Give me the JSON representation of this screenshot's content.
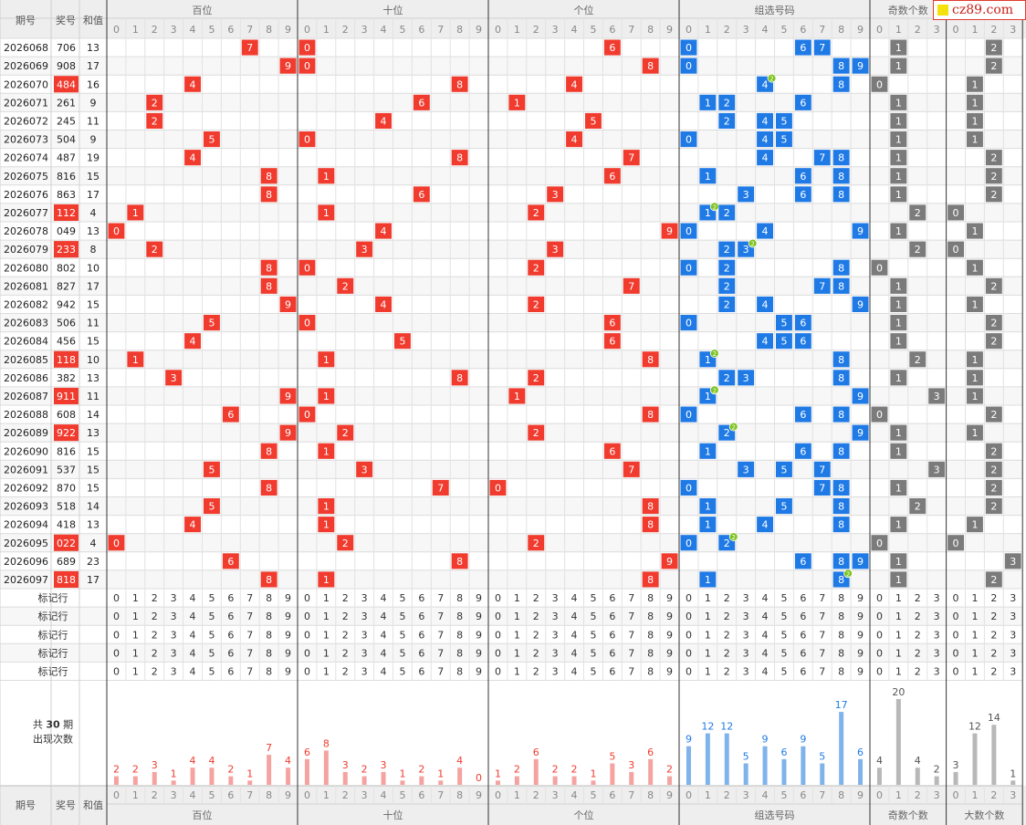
{
  "logo": {
    "text": "cz89.com"
  },
  "columns": {
    "period": "期号",
    "number": "奖号",
    "sum": "和值",
    "groups": [
      {
        "label": "百位",
        "digits": [
          "0",
          "1",
          "2",
          "3",
          "4",
          "5",
          "6",
          "7",
          "8",
          "9"
        ]
      },
      {
        "label": "十位",
        "digits": [
          "0",
          "1",
          "2",
          "3",
          "4",
          "5",
          "6",
          "7",
          "8",
          "9"
        ]
      },
      {
        "label": "个位",
        "digits": [
          "0",
          "1",
          "2",
          "3",
          "4",
          "5",
          "6",
          "7",
          "8",
          "9"
        ]
      },
      {
        "label": "组选号码",
        "digits": [
          "0",
          "1",
          "2",
          "3",
          "4",
          "5",
          "6",
          "7",
          "8",
          "9"
        ]
      },
      {
        "label": "奇数个数",
        "digits": [
          "0",
          "1",
          "2",
          "3"
        ]
      },
      {
        "label": "大数个数",
        "digits": [
          "0",
          "1",
          "2",
          "3"
        ]
      }
    ]
  },
  "rows": [
    {
      "period": "2026068",
      "number": "706",
      "sum": "13",
      "highlight": false
    },
    {
      "period": "2026069",
      "number": "908",
      "sum": "17",
      "highlight": false
    },
    {
      "period": "2026070",
      "number": "484",
      "sum": "16",
      "highlight": true
    },
    {
      "period": "2026071",
      "number": "261",
      "sum": "9",
      "highlight": false
    },
    {
      "period": "2026072",
      "number": "245",
      "sum": "11",
      "highlight": false
    },
    {
      "period": "2026073",
      "number": "504",
      "sum": "9",
      "highlight": false
    },
    {
      "period": "2026074",
      "number": "487",
      "sum": "19",
      "highlight": false
    },
    {
      "period": "2026075",
      "number": "816",
      "sum": "15",
      "highlight": false
    },
    {
      "period": "2026076",
      "number": "863",
      "sum": "17",
      "highlight": false
    },
    {
      "period": "2026077",
      "number": "112",
      "sum": "4",
      "highlight": true
    },
    {
      "period": "2026078",
      "number": "049",
      "sum": "13",
      "highlight": false
    },
    {
      "period": "2026079",
      "number": "233",
      "sum": "8",
      "highlight": true
    },
    {
      "period": "2026080",
      "number": "802",
      "sum": "10",
      "highlight": false
    },
    {
      "period": "2026081",
      "number": "827",
      "sum": "17",
      "highlight": false
    },
    {
      "period": "2026082",
      "number": "942",
      "sum": "15",
      "highlight": false
    },
    {
      "period": "2026083",
      "number": "506",
      "sum": "11",
      "highlight": false
    },
    {
      "period": "2026084",
      "number": "456",
      "sum": "15",
      "highlight": false
    },
    {
      "period": "2026085",
      "number": "118",
      "sum": "10",
      "highlight": true
    },
    {
      "period": "2026086",
      "number": "382",
      "sum": "13",
      "highlight": false
    },
    {
      "period": "2026087",
      "number": "911",
      "sum": "11",
      "highlight": true
    },
    {
      "period": "2026088",
      "number": "608",
      "sum": "14",
      "highlight": false
    },
    {
      "period": "2026089",
      "number": "922",
      "sum": "13",
      "highlight": true
    },
    {
      "period": "2026090",
      "number": "816",
      "sum": "15",
      "highlight": false
    },
    {
      "period": "2026091",
      "number": "537",
      "sum": "15",
      "highlight": false
    },
    {
      "period": "2026092",
      "number": "870",
      "sum": "15",
      "highlight": false
    },
    {
      "period": "2026093",
      "number": "518",
      "sum": "14",
      "highlight": false
    },
    {
      "period": "2026094",
      "number": "418",
      "sum": "13",
      "highlight": false
    },
    {
      "period": "2026095",
      "number": "022",
      "sum": "4",
      "highlight": true
    },
    {
      "period": "2026096",
      "number": "689",
      "sum": "23",
      "highlight": false
    },
    {
      "period": "2026097",
      "number": "818",
      "sum": "17",
      "highlight": true
    }
  ],
  "marker_rows": {
    "label": "标记行",
    "count": 5
  },
  "stats": {
    "total_prefix": "共",
    "total_count": "30",
    "total_suffix": "期",
    "label": "出现次数"
  },
  "chart_data": {
    "type": "bar",
    "series": [
      {
        "name": "百位",
        "categories": [
          "0",
          "1",
          "2",
          "3",
          "4",
          "5",
          "6",
          "7",
          "8",
          "9"
        ],
        "values": [
          2,
          2,
          3,
          1,
          4,
          4,
          2,
          1,
          7,
          4
        ]
      },
      {
        "name": "十位",
        "categories": [
          "0",
          "1",
          "2",
          "3",
          "4",
          "5",
          "6",
          "7",
          "8",
          "9"
        ],
        "values": [
          6,
          8,
          3,
          2,
          3,
          1,
          2,
          1,
          4,
          0
        ]
      },
      {
        "name": "个位",
        "categories": [
          "0",
          "1",
          "2",
          "3",
          "4",
          "5",
          "6",
          "7",
          "8",
          "9"
        ],
        "values": [
          1,
          2,
          6,
          2,
          2,
          1,
          5,
          3,
          6,
          2
        ]
      },
      {
        "name": "组选号码",
        "categories": [
          "0",
          "1",
          "2",
          "3",
          "4",
          "5",
          "6",
          "7",
          "8",
          "9"
        ],
        "values": [
          9,
          12,
          12,
          5,
          9,
          6,
          9,
          5,
          17,
          6
        ]
      },
      {
        "name": "奇数个数",
        "categories": [
          "0",
          "1",
          "2",
          "3"
        ],
        "values": [
          4,
          20,
          4,
          2
        ]
      },
      {
        "name": "大数个数",
        "categories": [
          "0",
          "1",
          "2",
          "3"
        ],
        "values": [
          3,
          12,
          14,
          1
        ]
      }
    ]
  },
  "colors": {
    "red": "#f03b2e",
    "blue": "#1f7ae6",
    "gray": "#7b7b7b",
    "red_bar": "#f4a3a1",
    "blue_bar": "#7fb3ea",
    "gray_bar": "#b8b8b8",
    "repeat_badge": "#7cc21e",
    "header_bg": "#eeeeee"
  }
}
